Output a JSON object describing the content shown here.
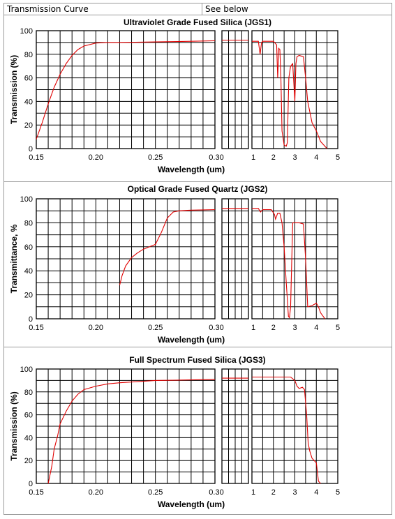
{
  "header": {
    "label": "Transmission Curve",
    "value": "See below"
  },
  "chart_data": [
    {
      "type": "line",
      "title": "Ultraviolet Grade Fused Silica (JGS1)",
      "xlabel": "Wavelength (um)",
      "ylabel": "Transmission (%)",
      "ylim": [
        0,
        100
      ],
      "yticks": [
        "0",
        "20",
        "40",
        "60",
        "80",
        "100"
      ],
      "grid": true,
      "segments": [
        {
          "xlim": [
            0.15,
            0.3
          ],
          "xticks": [
            "0.15",
            "0.20",
            "0.25",
            "0.30"
          ],
          "x": [
            0.15,
            0.155,
            0.16,
            0.165,
            0.17,
            0.175,
            0.18,
            0.185,
            0.19,
            0.2,
            0.21,
            0.22,
            0.25,
            0.28,
            0.3
          ],
          "y": [
            8,
            22,
            38,
            52,
            63,
            72,
            79,
            84,
            87,
            89.5,
            90,
            90,
            90.5,
            91,
            91.5
          ]
        },
        {
          "xlim": [
            0.3,
            0.4
          ],
          "xticks": [],
          "x": [
            0.3,
            0.35,
            0.4
          ],
          "y": [
            92,
            92,
            92
          ]
        },
        {
          "xlim": [
            1,
            5
          ],
          "xticks": [
            "1",
            "2",
            "3",
            "4",
            "5"
          ],
          "x": [
            1.0,
            1.3,
            1.38,
            1.45,
            1.5,
            2.0,
            2.15,
            2.2,
            2.25,
            2.3,
            2.35,
            2.4,
            2.5,
            2.6,
            2.65,
            2.72,
            2.8,
            2.9,
            3.0,
            3.05,
            3.1,
            3.2,
            3.4,
            3.5,
            3.6,
            3.8,
            4.0,
            4.2,
            4.5
          ],
          "y": [
            91,
            91,
            80,
            90,
            91,
            91,
            88,
            60,
            85,
            84,
            60,
            15,
            3,
            2,
            5,
            60,
            70,
            72,
            40,
            72,
            78,
            79,
            78,
            60,
            40,
            22,
            15,
            6,
            0
          ]
        }
      ]
    },
    {
      "type": "line",
      "title": "Optical Grade Fused Quartz  (JGS2)",
      "xlabel": "Wavelength (um)",
      "ylabel": "Transmittance, %",
      "ylim": [
        0,
        100
      ],
      "yticks": [
        "0",
        "20",
        "40",
        "60",
        "80",
        "100"
      ],
      "grid": true,
      "segments": [
        {
          "xlim": [
            0.15,
            0.3
          ],
          "xticks": [
            "0.15",
            "0.20",
            "0.25",
            "0.30"
          ],
          "x": [
            0.22,
            0.222,
            0.225,
            0.23,
            0.235,
            0.24,
            0.245,
            0.25,
            0.255,
            0.26,
            0.265,
            0.27,
            0.28,
            0.3
          ],
          "y": [
            28,
            36,
            44,
            51,
            55,
            58,
            60,
            62,
            72,
            84,
            89,
            90,
            90.5,
            91
          ]
        },
        {
          "xlim": [
            0.3,
            0.4
          ],
          "xticks": [],
          "x": [
            0.3,
            0.35,
            0.4
          ],
          "y": [
            92,
            92,
            92
          ]
        },
        {
          "xlim": [
            1,
            5
          ],
          "xticks": [
            "1",
            "2",
            "3",
            "4",
            "5"
          ],
          "x": [
            1.0,
            1.3,
            1.4,
            1.5,
            1.9,
            2.05,
            2.1,
            2.2,
            2.3,
            2.4,
            2.5,
            2.6,
            2.7,
            2.75,
            2.8,
            2.9,
            3.0,
            3.2,
            3.4,
            3.5,
            3.6,
            3.8,
            4.0,
            4.1,
            4.2,
            4.4
          ],
          "y": [
            92,
            92,
            89,
            91,
            91,
            87,
            83,
            88,
            88,
            80,
            60,
            30,
            2,
            1,
            10,
            80,
            80,
            80,
            79,
            50,
            10,
            11,
            13,
            10,
            5,
            0
          ]
        }
      ]
    },
    {
      "type": "line",
      "title": "Full Spectrum Fused Silica (JGS3)",
      "xlabel": "Wavelength (um)",
      "ylabel": "Transmission (%)",
      "ylim": [
        0,
        100
      ],
      "yticks": [
        "0",
        "20",
        "40",
        "60",
        "80",
        "100"
      ],
      "grid": true,
      "segments": [
        {
          "xlim": [
            0.15,
            0.3
          ],
          "xticks": [
            "0.15",
            "0.20",
            "0.25",
            "0.30"
          ],
          "x": [
            0.16,
            0.163,
            0.165,
            0.168,
            0.17,
            0.175,
            0.18,
            0.185,
            0.19,
            0.2,
            0.21,
            0.22,
            0.25,
            0.28,
            0.3
          ],
          "y": [
            0,
            15,
            30,
            42,
            52,
            63,
            72,
            78,
            82,
            85,
            87,
            88,
            90,
            90.5,
            91
          ]
        },
        {
          "xlim": [
            0.3,
            0.4
          ],
          "xticks": [],
          "x": [
            0.3,
            0.35,
            0.4
          ],
          "y": [
            92,
            92,
            92
          ]
        },
        {
          "xlim": [
            1,
            5
          ],
          "xticks": [
            "1",
            "2",
            "3",
            "4",
            "5"
          ],
          "x": [
            1.0,
            2.0,
            2.8,
            3.0,
            3.1,
            3.2,
            3.35,
            3.45,
            3.55,
            3.62,
            3.7,
            3.8,
            3.9,
            4.0,
            4.05,
            4.1,
            4.2
          ],
          "y": [
            93,
            93,
            93,
            90,
            85,
            83,
            84,
            82,
            60,
            35,
            28,
            22,
            20,
            18,
            10,
            2,
            0
          ]
        }
      ]
    }
  ],
  "colors": {
    "curve": "#e00000",
    "grid": "#000000",
    "border": "#9a9a9a"
  }
}
